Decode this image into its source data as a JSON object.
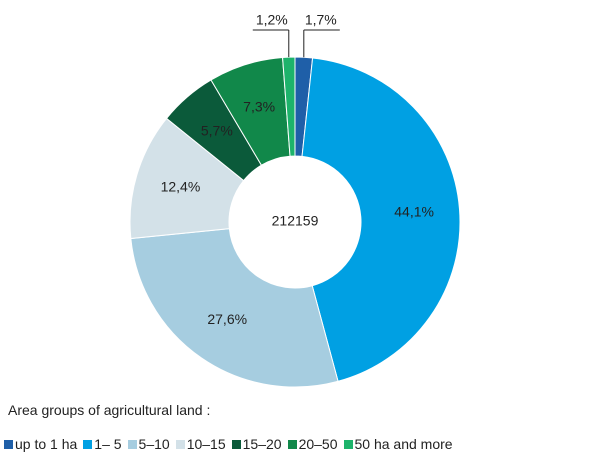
{
  "chart_data": {
    "type": "pie",
    "center_label": "212159",
    "legend_title": "Area groups of agricultural land :",
    "categories": [
      "up to 1 ha",
      "1– 5",
      "5–10",
      "10–15",
      "15–20",
      "20–50",
      "50 ha and more"
    ],
    "values": [
      1.7,
      44.1,
      27.6,
      12.4,
      5.7,
      7.3,
      1.2
    ],
    "value_labels": [
      "1,7%",
      "44,1%",
      "27,6%",
      "12,4%",
      "5,7%",
      "7,3%",
      "1,2%"
    ],
    "colors": [
      "#1f5fa8",
      "#00a0e3",
      "#a6cde0",
      "#d3e1e8",
      "#0b5a3a",
      "#11884a",
      "#1db36b"
    ]
  }
}
